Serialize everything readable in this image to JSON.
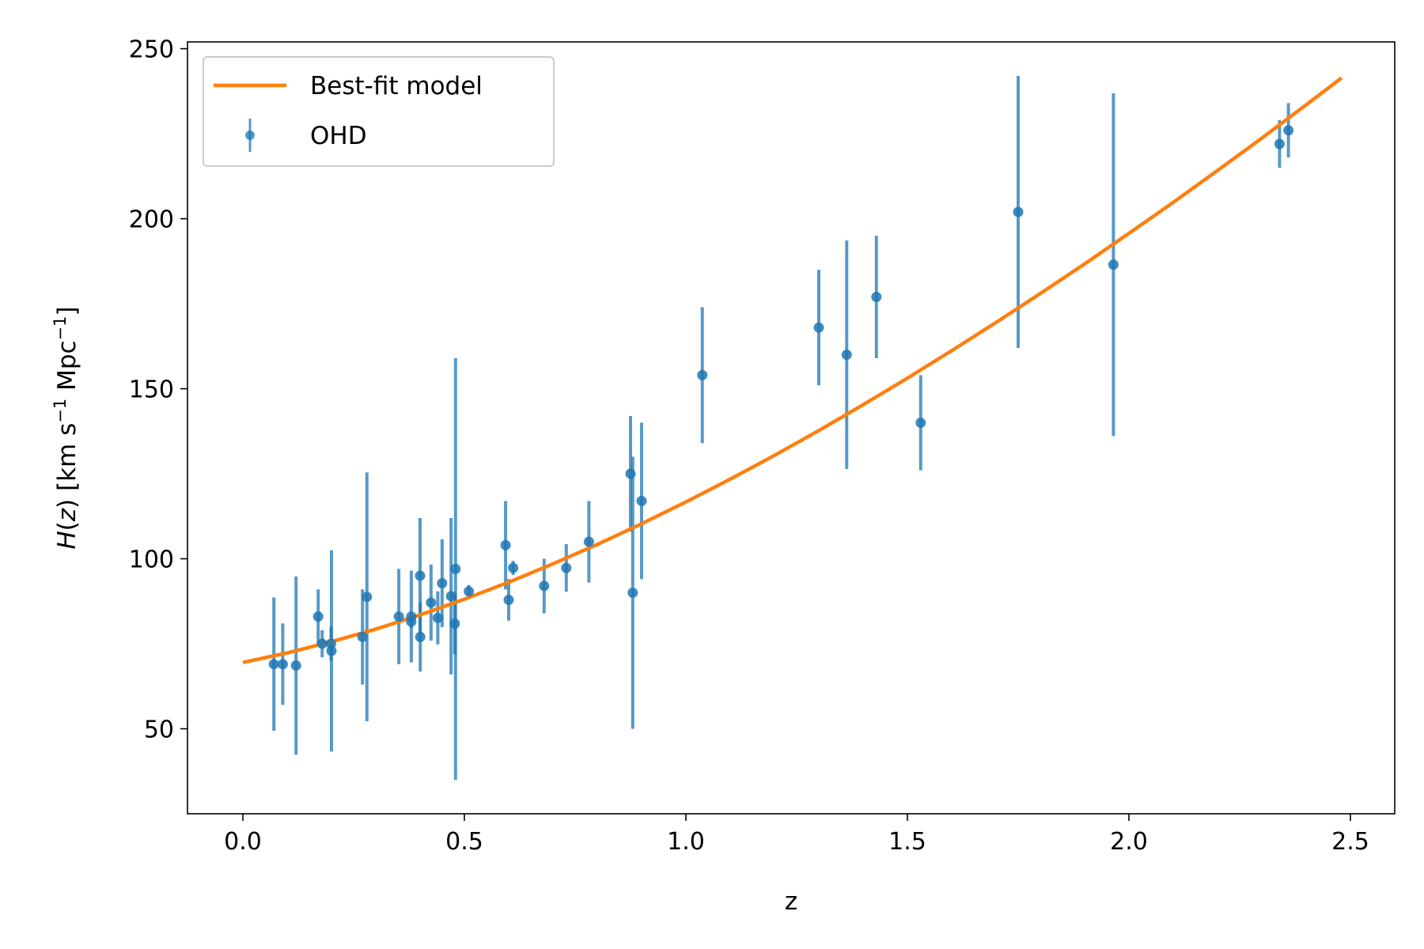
{
  "chart_data": {
    "type": "scatter",
    "title": "",
    "xlabel": "z",
    "ylabel": {
      "var": "H",
      "paren_open": "(",
      "arg": "z",
      "paren_close": ")",
      "units_a": " [km s",
      "sup1": "−1",
      "units_b": " Mpc",
      "sup2": "−1",
      "units_c": "]"
    },
    "xlim": [
      -0.125,
      2.6
    ],
    "ylim": [
      25,
      252
    ],
    "xticks": [
      0.0,
      0.5,
      1.0,
      1.5,
      2.0,
      2.5
    ],
    "xtick_labels": [
      "0.0",
      "0.5",
      "1.0",
      "1.5",
      "2.0",
      "2.5"
    ],
    "yticks": [
      50,
      100,
      150,
      200,
      250
    ],
    "ytick_labels": [
      "50",
      "100",
      "150",
      "200",
      "250"
    ],
    "grid": false,
    "legend_position": "top-left",
    "legend": [
      {
        "label": "Best-fit model",
        "kind": "line"
      },
      {
        "label": "OHD",
        "kind": "errorbar"
      }
    ],
    "colors": {
      "ohd": "#1f77b4",
      "model": "#ff7f0e"
    },
    "model": {
      "name": "Best-fit model",
      "x": [
        0.0,
        0.1,
        0.2,
        0.3,
        0.4,
        0.5,
        0.6,
        0.7,
        0.8,
        0.9,
        1.0,
        1.1,
        1.2,
        1.3,
        1.4,
        1.5,
        1.6,
        1.7,
        1.8,
        1.9,
        2.0,
        2.1,
        2.2,
        2.3,
        2.4,
        2.48
      ],
      "y": [
        69.5,
        72.3,
        75.6,
        79.3,
        83.5,
        88.1,
        93.1,
        98.5,
        104.2,
        110.3,
        116.7,
        123.4,
        130.4,
        137.7,
        145.3,
        153.1,
        161.2,
        169.5,
        178.0,
        186.7,
        195.7,
        204.8,
        214.2,
        223.7,
        233.5,
        241.4
      ]
    },
    "ohd": {
      "name": "OHD",
      "points": [
        {
          "x": 0.07,
          "y": 69.0,
          "err": 19.6
        },
        {
          "x": 0.09,
          "y": 69.0,
          "err": 12.0
        },
        {
          "x": 0.12,
          "y": 68.6,
          "err": 26.2
        },
        {
          "x": 0.17,
          "y": 83.0,
          "err": 8.0
        },
        {
          "x": 0.179,
          "y": 75.0,
          "err": 4.0
        },
        {
          "x": 0.199,
          "y": 75.0,
          "err": 5.0
        },
        {
          "x": 0.2,
          "y": 72.9,
          "err": 29.6
        },
        {
          "x": 0.27,
          "y": 77.0,
          "err": 14.0
        },
        {
          "x": 0.28,
          "y": 88.8,
          "err": 36.6
        },
        {
          "x": 0.352,
          "y": 83.0,
          "err": 14.0
        },
        {
          "x": 0.38,
          "y": 81.5,
          "err": 1.9
        },
        {
          "x": 0.3802,
          "y": 83.0,
          "err": 13.5
        },
        {
          "x": 0.4,
          "y": 95.0,
          "err": 17.0
        },
        {
          "x": 0.4004,
          "y": 77.0,
          "err": 10.2
        },
        {
          "x": 0.4247,
          "y": 87.1,
          "err": 11.2
        },
        {
          "x": 0.44,
          "y": 82.6,
          "err": 7.8
        },
        {
          "x": 0.4497,
          "y": 92.8,
          "err": 12.9
        },
        {
          "x": 0.47,
          "y": 89.0,
          "err": 23.0
        },
        {
          "x": 0.4783,
          "y": 80.9,
          "err": 9.0
        },
        {
          "x": 0.48,
          "y": 97.0,
          "err": 62.0
        },
        {
          "x": 0.51,
          "y": 90.4,
          "err": 1.9
        },
        {
          "x": 0.593,
          "y": 104.0,
          "err": 13.0
        },
        {
          "x": 0.6,
          "y": 87.9,
          "err": 6.1
        },
        {
          "x": 0.61,
          "y": 97.3,
          "err": 2.1
        },
        {
          "x": 0.68,
          "y": 92.0,
          "err": 8.0
        },
        {
          "x": 0.73,
          "y": 97.3,
          "err": 7.0
        },
        {
          "x": 0.781,
          "y": 105.0,
          "err": 12.0
        },
        {
          "x": 0.875,
          "y": 125.0,
          "err": 17.0
        },
        {
          "x": 0.88,
          "y": 90.0,
          "err": 40.0
        },
        {
          "x": 0.9,
          "y": 117.0,
          "err": 23.0
        },
        {
          "x": 1.037,
          "y": 154.0,
          "err": 20.0
        },
        {
          "x": 1.3,
          "y": 168.0,
          "err": 17.0
        },
        {
          "x": 1.363,
          "y": 160.0,
          "err": 33.6
        },
        {
          "x": 1.43,
          "y": 177.0,
          "err": 18.0
        },
        {
          "x": 1.53,
          "y": 140.0,
          "err": 14.0
        },
        {
          "x": 1.75,
          "y": 202.0,
          "err": 40.0
        },
        {
          "x": 1.965,
          "y": 186.5,
          "err": 50.4
        },
        {
          "x": 2.34,
          "y": 222.0,
          "err": 7.0
        },
        {
          "x": 2.36,
          "y": 226.0,
          "err": 8.0
        }
      ]
    }
  }
}
